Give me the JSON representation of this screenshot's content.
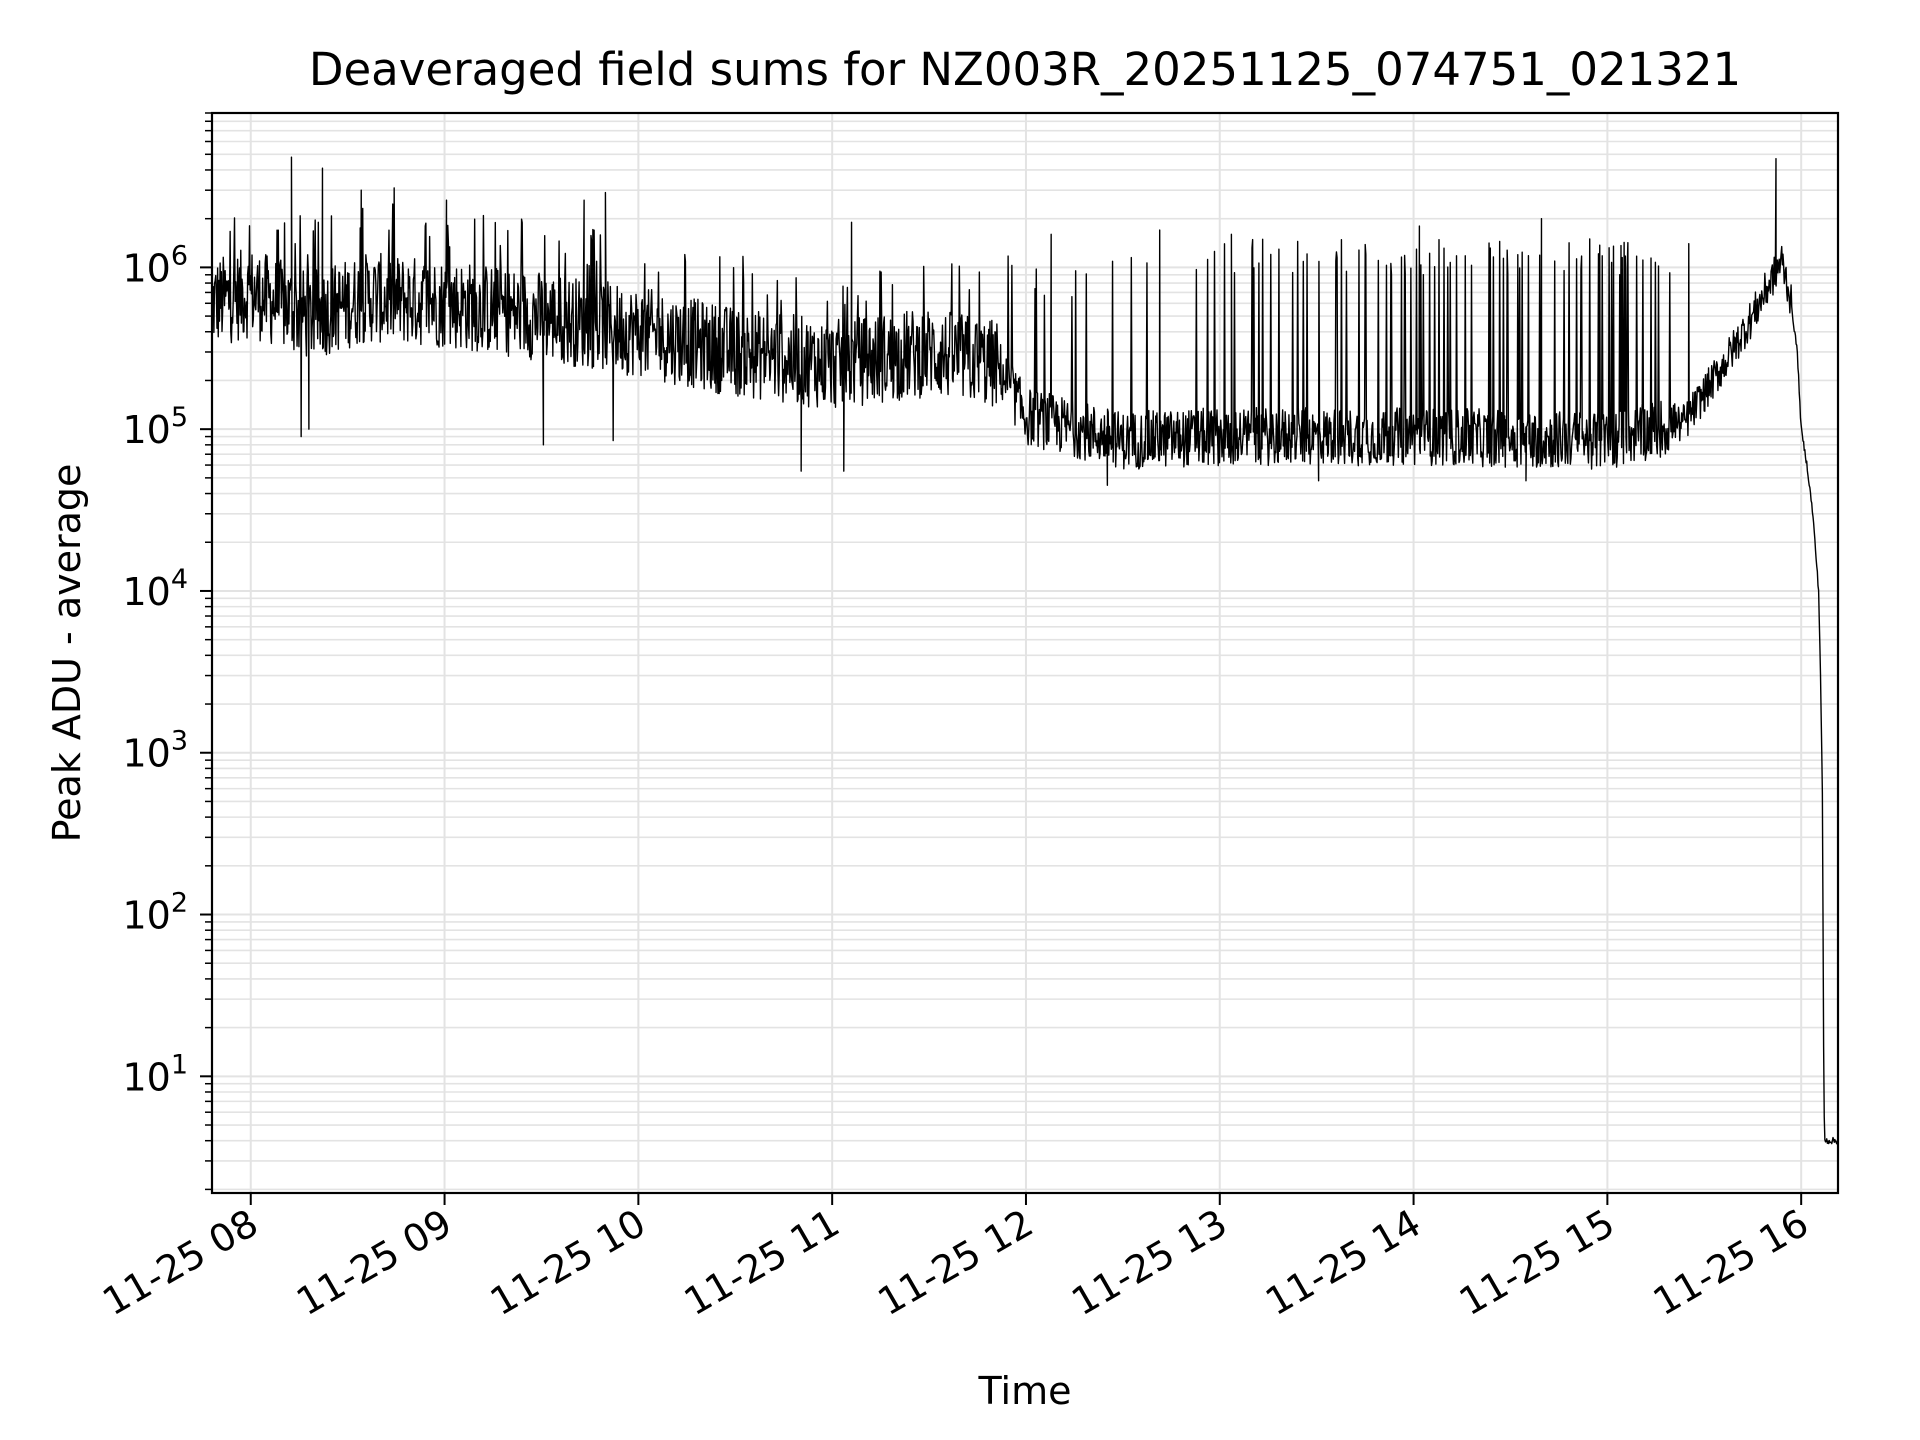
{
  "chart_data": {
    "type": "line",
    "title": "Deaveraged field sums for NZ003R_20251125_074751_021321",
    "xlabel": "Time",
    "ylabel": "Peak ADU - average",
    "yscale": "log",
    "ylim": [
      1.9,
      9000000
    ],
    "xlim_hours": [
      7.8,
      16.19
    ],
    "grid": true,
    "line_color": "#000000",
    "x_ticks": [
      {
        "label": "11-25 08",
        "hour": 8
      },
      {
        "label": "11-25 09",
        "hour": 9
      },
      {
        "label": "11-25 10",
        "hour": 10
      },
      {
        "label": "11-25 11",
        "hour": 11
      },
      {
        "label": "11-25 12",
        "hour": 12
      },
      {
        "label": "11-25 13",
        "hour": 13
      },
      {
        "label": "11-25 14",
        "hour": 14
      },
      {
        "label": "11-25 15",
        "hour": 15
      },
      {
        "label": "11-25 16",
        "hour": 16
      }
    ],
    "y_ticks": [
      {
        "base": "10",
        "exp": "1",
        "value": 10
      },
      {
        "base": "10",
        "exp": "2",
        "value": 100
      },
      {
        "base": "10",
        "exp": "3",
        "value": 1000
      },
      {
        "base": "10",
        "exp": "4",
        "value": 10000
      },
      {
        "base": "10",
        "exp": "5",
        "value": 100000
      },
      {
        "base": "10",
        "exp": "6",
        "value": 1000000
      }
    ],
    "series": [
      {
        "name": "Deaveraged field sum",
        "baseline_hours": [
          7.8,
          8.0,
          8.3,
          8.6,
          9.0,
          9.5,
          10.0,
          10.5,
          11.0,
          11.5,
          11.85,
          12.0,
          12.5,
          13.0,
          14.0,
          15.0,
          15.4,
          15.6,
          15.75,
          15.88,
          15.9,
          15.94,
          15.98,
          16.0,
          16.03,
          16.06,
          16.09,
          16.1,
          16.11,
          16.115,
          16.12,
          16.19
        ],
        "baseline_values": [
          600000,
          700000,
          500000,
          650000,
          600000,
          500000,
          400000,
          300000,
          250000,
          300000,
          250000,
          120000,
          85000,
          90000,
          90000,
          85000,
          110000,
          250000,
          500000,
          1000000,
          1100000,
          700000,
          300000,
          100000,
          60000,
          30000,
          10000,
          3000,
          500,
          20,
          4,
          4
        ],
        "spikes": [
          {
            "hour": 8.21,
            "value": 4800000
          },
          {
            "hour": 8.37,
            "value": 4100000
          },
          {
            "hour": 8.57,
            "value": 3000000
          },
          {
            "hour": 8.74,
            "value": 3100000
          },
          {
            "hour": 9.01,
            "value": 2600000
          },
          {
            "hour": 9.72,
            "value": 2600000
          },
          {
            "hour": 9.83,
            "value": 2900000
          },
          {
            "hour": 11.1,
            "value": 1900000
          },
          {
            "hour": 12.13,
            "value": 1600000
          },
          {
            "hour": 12.69,
            "value": 1700000
          },
          {
            "hour": 13.06,
            "value": 1600000
          },
          {
            "hour": 14.03,
            "value": 1800000
          },
          {
            "hour": 14.66,
            "value": 2000000
          },
          {
            "hour": 15.42,
            "value": 1400000
          },
          {
            "hour": 15.87,
            "value": 4700000
          }
        ],
        "dips": [
          {
            "hour": 8.26,
            "value": 90000
          },
          {
            "hour": 8.3,
            "value": 100000
          },
          {
            "hour": 9.51,
            "value": 80000
          },
          {
            "hour": 9.87,
            "value": 85000
          },
          {
            "hour": 10.84,
            "value": 55000
          },
          {
            "hour": 11.06,
            "value": 55000
          },
          {
            "hour": 12.42,
            "value": 45000
          },
          {
            "hour": 13.51,
            "value": 48000
          },
          {
            "hour": 14.58,
            "value": 48000
          }
        ]
      }
    ]
  }
}
